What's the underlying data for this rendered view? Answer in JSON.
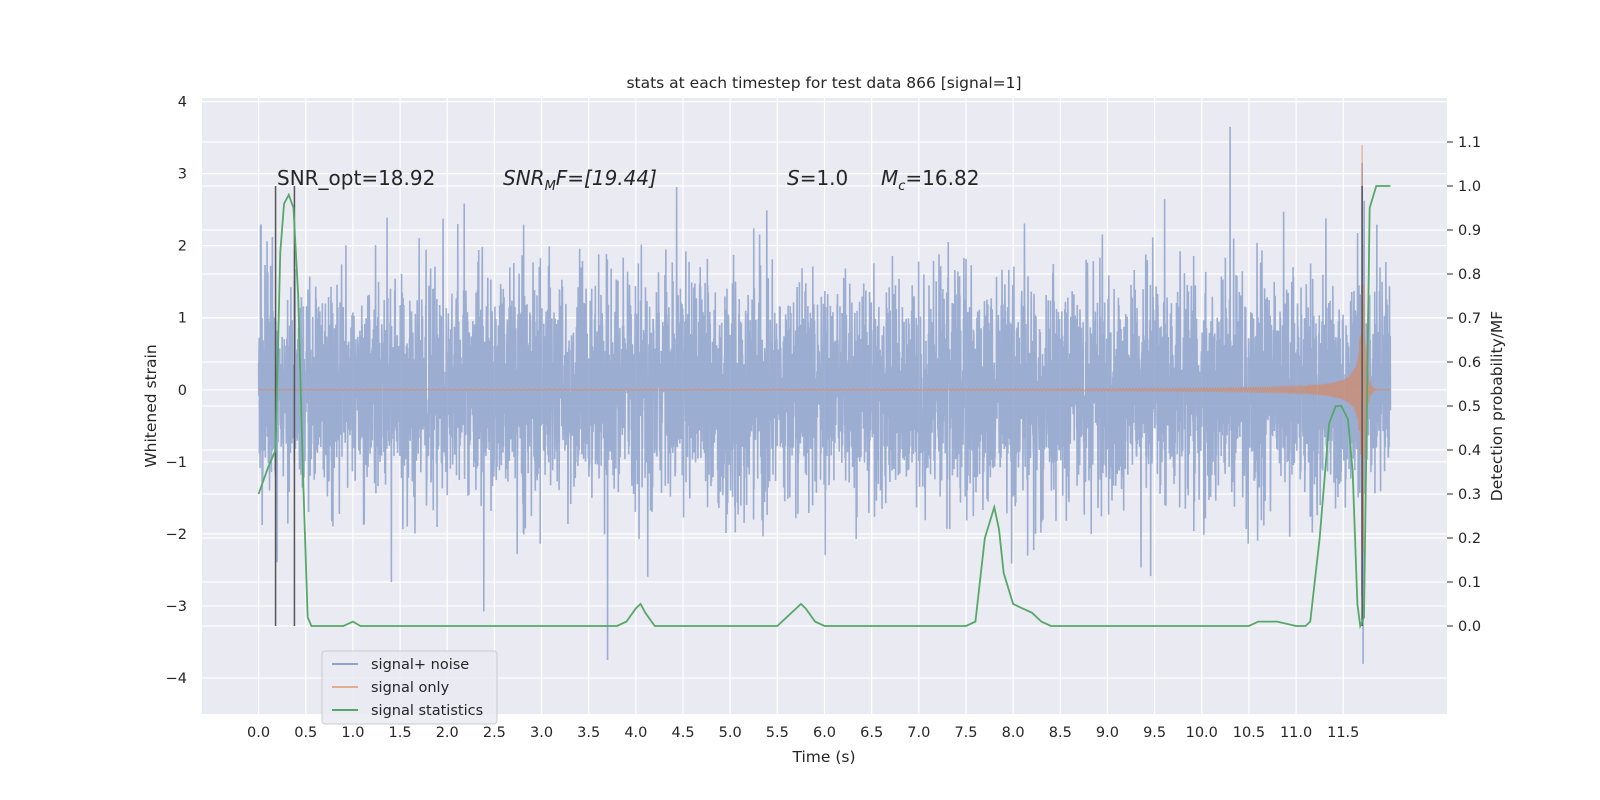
{
  "chart_data": {
    "type": "line",
    "title": "stats at each timestep for test data 866 [signal=1]",
    "xlabel": "Time (s)",
    "ylabel": "Whitened strain",
    "ylabel_right": "Detection probability/MF",
    "xlim": [
      -0.6,
      12.6
    ],
    "ylim": [
      -4.5,
      4.05
    ],
    "ylim_right": [
      -0.2,
      1.2
    ],
    "x_ticks": [
      "0.0",
      "0.5",
      "1.0",
      "1.5",
      "2.0",
      "2.5",
      "3.0",
      "3.5",
      "4.0",
      "4.5",
      "5.0",
      "5.5",
      "6.0",
      "6.5",
      "7.0",
      "7.5",
      "8.0",
      "8.5",
      "9.0",
      "9.5",
      "10.0",
      "10.5",
      "11.0",
      "11.5"
    ],
    "y_ticks": [
      "−4",
      "−3",
      "−2",
      "−1",
      "0",
      "1",
      "2",
      "3",
      "4"
    ],
    "y_ticks_right": [
      "0.0",
      "0.1",
      "0.2",
      "0.3",
      "0.4",
      "0.5",
      "0.6",
      "0.7",
      "0.8",
      "0.9",
      "1.0",
      "1.1"
    ],
    "grid": true,
    "legend_position": "lower-left",
    "legend": [
      "signal+ noise",
      "signal only",
      "signal statistics"
    ],
    "colors": {
      "noise": "#8ea2cc",
      "signal": "#dd8452",
      "stats": "#55a868",
      "vline": "#555555",
      "background": "#eaeaf2"
    },
    "annotations": {
      "snr_opt": "SNR_opt=18.92",
      "snr_mf_main": "SNR",
      "snr_mf_sub": "M",
      "snr_mf_rest": "F=[19.44]",
      "s_main": "S",
      "s_rest": "=1.0",
      "mc_main": "M",
      "mc_sub": "c",
      "mc_rest": "=16.82"
    },
    "signal_plus_noise": {
      "t_start": 0.0,
      "t_end": 12.0,
      "std": 0.75,
      "peak_max": 3.65,
      "peak_min": -3.75
    },
    "signal_only": {
      "t_start": 0.0,
      "t_end": 12.0,
      "merger_time": 11.7,
      "peak": 3.4,
      "trough": -3.9
    },
    "signal_statistics": {
      "x": [
        0.0,
        0.1,
        0.18,
        0.23,
        0.27,
        0.32,
        0.37,
        0.42,
        0.47,
        0.52,
        0.56,
        0.6,
        0.7,
        0.8,
        0.9,
        1.0,
        1.08,
        1.2,
        1.5,
        2.0,
        2.5,
        3.0,
        3.5,
        3.8,
        3.9,
        4.0,
        4.05,
        4.1,
        4.2,
        4.3,
        4.5,
        5.0,
        5.5,
        5.6,
        5.7,
        5.75,
        5.8,
        5.9,
        6.0,
        6.2,
        6.5,
        6.7,
        7.0,
        7.5,
        7.6,
        7.7,
        7.8,
        7.85,
        7.9,
        8.0,
        8.1,
        8.2,
        8.3,
        8.4,
        8.5,
        9.0,
        9.5,
        10.0,
        10.3,
        10.5,
        10.6,
        10.8,
        11.0,
        11.1,
        11.15,
        11.25,
        11.35,
        11.42,
        11.48,
        11.55,
        11.6,
        11.65,
        11.68,
        11.72,
        11.78,
        11.85,
        12.0
      ],
      "y": [
        0.3,
        0.36,
        0.4,
        0.85,
        0.96,
        0.98,
        0.95,
        0.75,
        0.35,
        0.02,
        0.0,
        0.0,
        0.0,
        0.0,
        0.0,
        0.01,
        0.0,
        0.0,
        0.0,
        0.0,
        0.0,
        0.0,
        0.0,
        0.0,
        0.01,
        0.04,
        0.05,
        0.03,
        0.0,
        0.0,
        0.0,
        0.0,
        0.0,
        0.02,
        0.04,
        0.05,
        0.04,
        0.01,
        0.0,
        0.0,
        0.0,
        0.0,
        0.0,
        0.0,
        0.01,
        0.2,
        0.27,
        0.22,
        0.12,
        0.05,
        0.04,
        0.03,
        0.01,
        0.0,
        0.0,
        0.0,
        0.0,
        0.0,
        0.0,
        0.0,
        0.01,
        0.01,
        0.0,
        0.0,
        0.01,
        0.2,
        0.46,
        0.5,
        0.5,
        0.47,
        0.35,
        0.05,
        0.0,
        0.02,
        0.95,
        1.0,
        1.0
      ]
    },
    "vertical_markers_x": [
      0.18,
      0.38,
      11.7
    ]
  }
}
